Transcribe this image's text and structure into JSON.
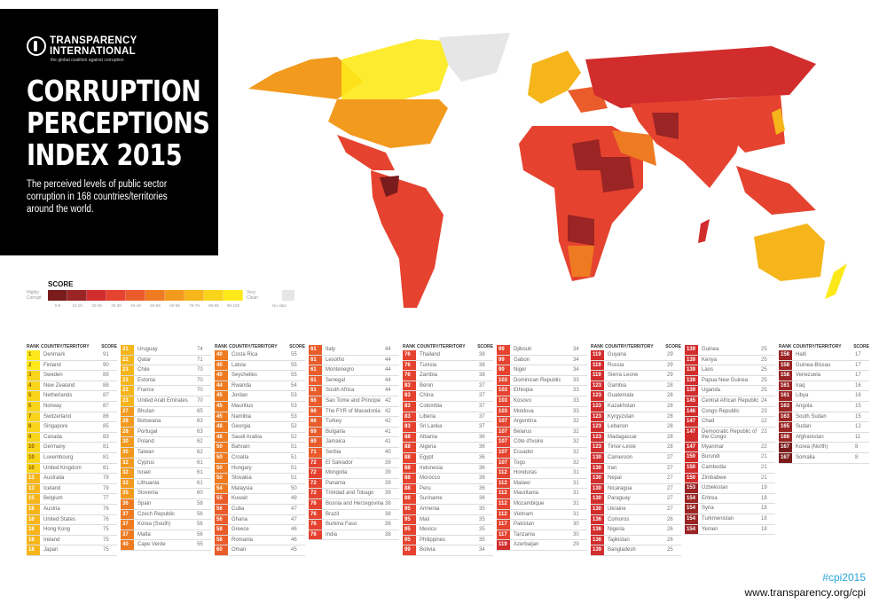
{
  "header": {
    "org_line1": "TRANSPARENCY",
    "org_line2": "INTERNATIONAL",
    "org_tagline": "the global coalition against corruption",
    "title_line1": "CORRUPTION",
    "title_line2": "PERCEPTIONS",
    "title_line3": "INDEX 2015",
    "subtitle": "The perceived levels of public sector corruption in 168 countries/territories around the world."
  },
  "legend": {
    "title": "SCORE",
    "low_label": "Highly Corrupt",
    "high_label": "Very Clean",
    "no_data_label": "No data",
    "bins": [
      "0-9",
      "10-19",
      "20-29",
      "30-39",
      "40-49",
      "50-59",
      "60-69",
      "70-79",
      "80-89",
      "90-100"
    ],
    "colors": [
      "#7a1c1c",
      "#9b2424",
      "#d22d2d",
      "#e5432f",
      "#ea5c2b",
      "#ee7b22",
      "#f29a1e",
      "#f5b51b",
      "#f9d41a",
      "#fde91a"
    ],
    "no_data_color": "#e6e6e6"
  },
  "table_headers": {
    "rank": "RANK",
    "country": "COUNTRY/TERRITORY",
    "score": "SCORE"
  },
  "footer": {
    "hashtag": "#cpi2015",
    "url": "www.transparency.org/cpi"
  },
  "chart_data": {
    "type": "table",
    "title": "Corruption Perceptions Index 2015",
    "subtitle": "The perceived levels of public sector corruption in 168 countries/territories around the world.",
    "scale": "0 = Highly Corrupt, 100 = Very Clean",
    "columns": [
      "rank",
      "country",
      "score"
    ],
    "rows": [
      [
        1,
        "Denmark",
        91
      ],
      [
        2,
        "Finland",
        90
      ],
      [
        3,
        "Sweden",
        89
      ],
      [
        4,
        "New Zealand",
        88
      ],
      [
        5,
        "Netherlands",
        87
      ],
      [
        5,
        "Norway",
        87
      ],
      [
        7,
        "Switzerland",
        86
      ],
      [
        8,
        "Singapore",
        85
      ],
      [
        9,
        "Canada",
        83
      ],
      [
        10,
        "Germany",
        81
      ],
      [
        10,
        "Luxembourg",
        81
      ],
      [
        10,
        "United Kingdom",
        81
      ],
      [
        13,
        "Australia",
        79
      ],
      [
        13,
        "Iceland",
        79
      ],
      [
        15,
        "Belgium",
        77
      ],
      [
        16,
        "Austria",
        76
      ],
      [
        16,
        "United States",
        76
      ],
      [
        18,
        "Hong Kong",
        75
      ],
      [
        18,
        "Ireland",
        75
      ],
      [
        18,
        "Japan",
        75
      ],
      [
        21,
        "Uruguay",
        74
      ],
      [
        22,
        "Qatar",
        71
      ],
      [
        23,
        "Chile",
        70
      ],
      [
        23,
        "Estonia",
        70
      ],
      [
        23,
        "France",
        70
      ],
      [
        23,
        "United Arab Emirates",
        70
      ],
      [
        27,
        "Bhutan",
        65
      ],
      [
        28,
        "Botswana",
        63
      ],
      [
        28,
        "Portugal",
        63
      ],
      [
        30,
        "Poland",
        62
      ],
      [
        30,
        "Taiwan",
        62
      ],
      [
        32,
        "Cyprus",
        61
      ],
      [
        32,
        "Israel",
        61
      ],
      [
        32,
        "Lithuania",
        61
      ],
      [
        35,
        "Slovenia",
        60
      ],
      [
        36,
        "Spain",
        58
      ],
      [
        37,
        "Czech Republic",
        56
      ],
      [
        37,
        "Korea (South)",
        56
      ],
      [
        37,
        "Malta",
        56
      ],
      [
        40,
        "Cape Verde",
        55
      ],
      [
        40,
        "Costa Rica",
        55
      ],
      [
        40,
        "Latvia",
        55
      ],
      [
        40,
        "Seychelles",
        55
      ],
      [
        44,
        "Rwanda",
        54
      ],
      [
        45,
        "Jordan",
        53
      ],
      [
        45,
        "Mauritius",
        53
      ],
      [
        45,
        "Namibia",
        53
      ],
      [
        48,
        "Georgia",
        52
      ],
      [
        48,
        "Saudi Arabia",
        52
      ],
      [
        50,
        "Bahrain",
        51
      ],
      [
        50,
        "Croatia",
        51
      ],
      [
        50,
        "Hungary",
        51
      ],
      [
        50,
        "Slovakia",
        51
      ],
      [
        54,
        "Malaysia",
        50
      ],
      [
        55,
        "Kuwait",
        49
      ],
      [
        56,
        "Cuba",
        47
      ],
      [
        56,
        "Ghana",
        47
      ],
      [
        58,
        "Greece",
        46
      ],
      [
        58,
        "Romania",
        46
      ],
      [
        60,
        "Oman",
        45
      ],
      [
        61,
        "Italy",
        44
      ],
      [
        61,
        "Lesotho",
        44
      ],
      [
        61,
        "Montenegro",
        44
      ],
      [
        61,
        "Senegal",
        44
      ],
      [
        61,
        "South Africa",
        44
      ],
      [
        66,
        "Sao Tome and Principe",
        42
      ],
      [
        66,
        "The FYR of Macedonia",
        42
      ],
      [
        66,
        "Turkey",
        42
      ],
      [
        69,
        "Bulgaria",
        41
      ],
      [
        69,
        "Jamaica",
        41
      ],
      [
        71,
        "Serbia",
        40
      ],
      [
        72,
        "El Salvador",
        39
      ],
      [
        72,
        "Mongolia",
        39
      ],
      [
        72,
        "Panama",
        39
      ],
      [
        72,
        "Trinidad and Tobago",
        39
      ],
      [
        76,
        "Bosnia and Herzegovina",
        38
      ],
      [
        76,
        "Brazil",
        38
      ],
      [
        76,
        "Burkina Faso",
        38
      ],
      [
        76,
        "India",
        38
      ],
      [
        76,
        "Thailand",
        38
      ],
      [
        76,
        "Tunisia",
        38
      ],
      [
        76,
        "Zambia",
        38
      ],
      [
        83,
        "Benin",
        37
      ],
      [
        83,
        "China",
        37
      ],
      [
        83,
        "Colombia",
        37
      ],
      [
        83,
        "Liberia",
        37
      ],
      [
        83,
        "Sri Lanka",
        37
      ],
      [
        88,
        "Albania",
        36
      ],
      [
        88,
        "Algeria",
        36
      ],
      [
        88,
        "Egypt",
        36
      ],
      [
        88,
        "Indonesia",
        36
      ],
      [
        88,
        "Morocco",
        36
      ],
      [
        88,
        "Peru",
        36
      ],
      [
        88,
        "Suriname",
        36
      ],
      [
        95,
        "Armenia",
        35
      ],
      [
        95,
        "Mali",
        35
      ],
      [
        95,
        "Mexico",
        35
      ],
      [
        95,
        "Philippines",
        35
      ],
      [
        99,
        "Bolivia",
        34
      ],
      [
        99,
        "Djibouti",
        34
      ],
      [
        99,
        "Gabon",
        34
      ],
      [
        99,
        "Niger",
        34
      ],
      [
        103,
        "Dominican Republic",
        33
      ],
      [
        103,
        "Ethiopia",
        33
      ],
      [
        103,
        "Kosovo",
        33
      ],
      [
        103,
        "Moldova",
        33
      ],
      [
        107,
        "Argentina",
        32
      ],
      [
        107,
        "Belarus",
        32
      ],
      [
        107,
        "Côte d'Ivoire",
        32
      ],
      [
        107,
        "Ecuador",
        32
      ],
      [
        107,
        "Togo",
        32
      ],
      [
        112,
        "Honduras",
        31
      ],
      [
        112,
        "Malawi",
        31
      ],
      [
        112,
        "Mauritania",
        31
      ],
      [
        112,
        "Mozambique",
        31
      ],
      [
        112,
        "Vietnam",
        31
      ],
      [
        117,
        "Pakistan",
        30
      ],
      [
        117,
        "Tanzania",
        30
      ],
      [
        119,
        "Azerbaijan",
        29
      ],
      [
        119,
        "Guyana",
        29
      ],
      [
        119,
        "Russia",
        29
      ],
      [
        119,
        "Sierra Leone",
        29
      ],
      [
        123,
        "Gambia",
        28
      ],
      [
        123,
        "Guatemala",
        28
      ],
      [
        123,
        "Kazakhstan",
        28
      ],
      [
        123,
        "Kyrgyzstan",
        28
      ],
      [
        123,
        "Lebanon",
        28
      ],
      [
        123,
        "Madagascar",
        28
      ],
      [
        123,
        "Timor-Leste",
        28
      ],
      [
        130,
        "Cameroon",
        27
      ],
      [
        130,
        "Iran",
        27
      ],
      [
        130,
        "Nepal",
        27
      ],
      [
        130,
        "Nicaragua",
        27
      ],
      [
        130,
        "Paraguay",
        27
      ],
      [
        130,
        "Ukraine",
        27
      ],
      [
        136,
        "Comoros",
        26
      ],
      [
        136,
        "Nigeria",
        26
      ],
      [
        136,
        "Tajikistan",
        26
      ],
      [
        139,
        "Bangladesh",
        25
      ],
      [
        139,
        "Guinea",
        25
      ],
      [
        139,
        "Kenya",
        25
      ],
      [
        139,
        "Laos",
        25
      ],
      [
        139,
        "Papua New Guinea",
        25
      ],
      [
        139,
        "Uganda",
        25
      ],
      [
        145,
        "Central African Republic",
        24
      ],
      [
        146,
        "Congo Republic",
        23
      ],
      [
        147,
        "Chad",
        22
      ],
      [
        147,
        "Democratic Republic of the Congo",
        22
      ],
      [
        147,
        "Myanmar",
        22
      ],
      [
        150,
        "Burundi",
        21
      ],
      [
        150,
        "Cambodia",
        21
      ],
      [
        150,
        "Zimbabwe",
        21
      ],
      [
        153,
        "Uzbekistan",
        19
      ],
      [
        154,
        "Eritrea",
        18
      ],
      [
        154,
        "Syria",
        18
      ],
      [
        154,
        "Turkmenistan",
        18
      ],
      [
        154,
        "Yemen",
        18
      ],
      [
        158,
        "Haiti",
        17
      ],
      [
        158,
        "Guinea-Bissau",
        17
      ],
      [
        158,
        "Venezuela",
        17
      ],
      [
        161,
        "Iraq",
        16
      ],
      [
        161,
        "Libya",
        16
      ],
      [
        163,
        "Angola",
        15
      ],
      [
        163,
        "South Sudan",
        15
      ],
      [
        165,
        "Sudan",
        12
      ],
      [
        166,
        "Afghanistan",
        11
      ],
      [
        167,
        "Korea (North)",
        8
      ],
      [
        167,
        "Somalia",
        8
      ]
    ],
    "column_breaks": [
      20,
      40,
      60,
      79,
      99,
      119,
      139,
      157,
      168
    ]
  }
}
